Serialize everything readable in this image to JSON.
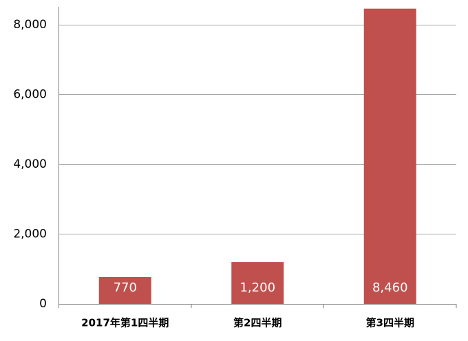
{
  "chart_data": {
    "type": "bar",
    "categories": [
      "2017年第1四半期",
      "第2四半期",
      "第3四半期"
    ],
    "values": [
      770,
      1200,
      8460
    ],
    "value_labels": [
      "770",
      "1,200",
      "8,460"
    ],
    "color": "#c0504d",
    "ylim": [
      0,
      8500
    ],
    "yticks": [
      0,
      {
        "value": 2000,
        "label": "2,000"
      },
      {
        "value": 4000,
        "label": "4,000"
      },
      {
        "value": 6000,
        "label": "6,000"
      },
      {
        "value": 8000,
        "label": "8,000"
      }
    ],
    "grid": true
  }
}
